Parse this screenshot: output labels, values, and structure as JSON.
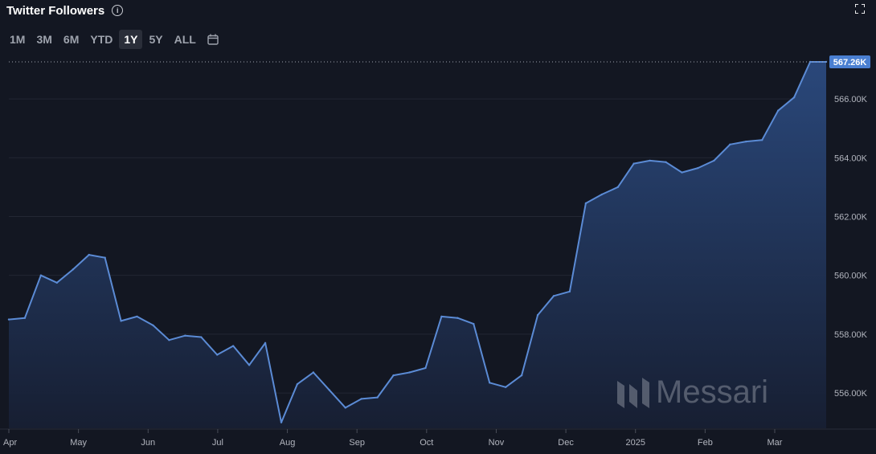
{
  "header": {
    "title": "Twitter Followers",
    "info_icon": "info-icon",
    "expand_icon": "expand-icon"
  },
  "ranges": [
    {
      "label": "1M",
      "active": false
    },
    {
      "label": "3M",
      "active": false
    },
    {
      "label": "6M",
      "active": false
    },
    {
      "label": "YTD",
      "active": false
    },
    {
      "label": "1Y",
      "active": true
    },
    {
      "label": "5Y",
      "active": false
    },
    {
      "label": "ALL",
      "active": false
    }
  ],
  "calendar_icon": "calendar-icon",
  "watermark": {
    "text": "Messari",
    "icon": "messari-logo-icon"
  },
  "colors": {
    "background": "#131722",
    "line": "#5b8bd5",
    "fill_top": "#2b4a7f",
    "fill_bottom": "#171f33",
    "grid": "#232733",
    "last_label_bg": "#4a7fd1"
  },
  "chart_data": {
    "type": "area",
    "title": "Twitter Followers",
    "xlabel": "",
    "ylabel": "",
    "x_tick_labels": [
      "Apr",
      "May",
      "Jun",
      "Jul",
      "Aug",
      "Sep",
      "Oct",
      "Nov",
      "Dec",
      "2025",
      "Feb",
      "Mar"
    ],
    "y_tick_labels": [
      "556.00K",
      "558.00K",
      "560.00K",
      "562.00K",
      "564.00K",
      "566.00K"
    ],
    "y_ticks": [
      556000,
      558000,
      560000,
      562000,
      564000,
      566000
    ],
    "ylim": [
      554800,
      567450
    ],
    "grid": true,
    "last_value_label": "567.26K",
    "series": [
      {
        "values": [
          558500,
          558550,
          560000,
          559750,
          560200,
          560700,
          560600,
          558450,
          558600,
          558300,
          557800,
          557950,
          557900,
          557300,
          557600,
          556950,
          557700,
          555000,
          556300,
          556700,
          556100,
          555500,
          555800,
          555850,
          556600,
          556700,
          556850,
          558600,
          558550,
          558350,
          556350,
          556200,
          556600,
          558650,
          559300,
          559450,
          562450,
          562750,
          563000,
          563800,
          563900,
          563850,
          563500,
          563650,
          563900,
          564450,
          564550,
          564600,
          565600,
          566050,
          567260,
          567260
        ]
      }
    ]
  }
}
